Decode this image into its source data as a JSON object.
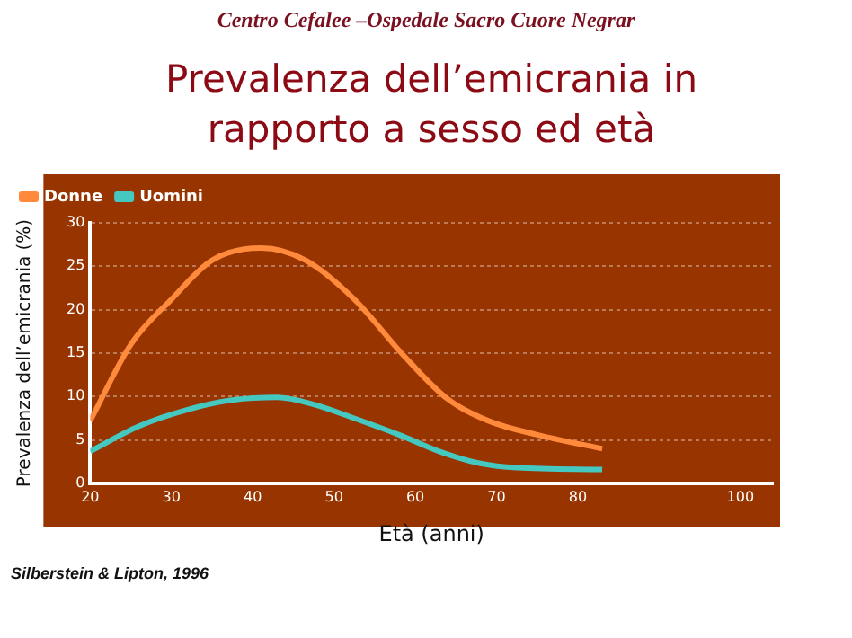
{
  "chart_data": {
    "type": "line",
    "subtitle": "Centro Cefalee –Ospedale Sacro Cuore Negrar",
    "title": "Prevalenza dell’emicrania in rapporto a sesso ed età",
    "xlabel": "Età (anni)",
    "ylabel": "Prevalenza dell’emicrania (%)",
    "annotations": [
      "Silberstein & Lipton, 1996"
    ],
    "xlim": [
      20,
      104
    ],
    "xticks": [
      20,
      30,
      40,
      50,
      60,
      70,
      80,
      100
    ],
    "ylim": [
      0,
      30
    ],
    "yticks": [
      0,
      5,
      10,
      15,
      20,
      25,
      30
    ],
    "grid": "y",
    "legend": "top left",
    "marker": "none",
    "series": [
      {
        "name": "Donne",
        "color": "#ff8a3c",
        "x": [
          20,
          25,
          30,
          35,
          41,
          46.5,
          52.5,
          58.5,
          64,
          69,
          75,
          83
        ],
        "values": [
          7.2,
          16,
          21.2,
          25.7,
          27.1,
          25.7,
          21.2,
          14.8,
          9.7,
          7.2,
          5.6,
          4
        ]
      },
      {
        "name": "Uomini",
        "color": "#45c8c0",
        "x": [
          20,
          26,
          32,
          37.5,
          43,
          47.5,
          52.5,
          58,
          63.5,
          68,
          72.5,
          83
        ],
        "values": [
          3.7,
          6.6,
          8.5,
          9.6,
          9.9,
          9.1,
          7.5,
          5.6,
          3.5,
          2.3,
          1.8,
          1.6
        ]
      }
    ]
  }
}
